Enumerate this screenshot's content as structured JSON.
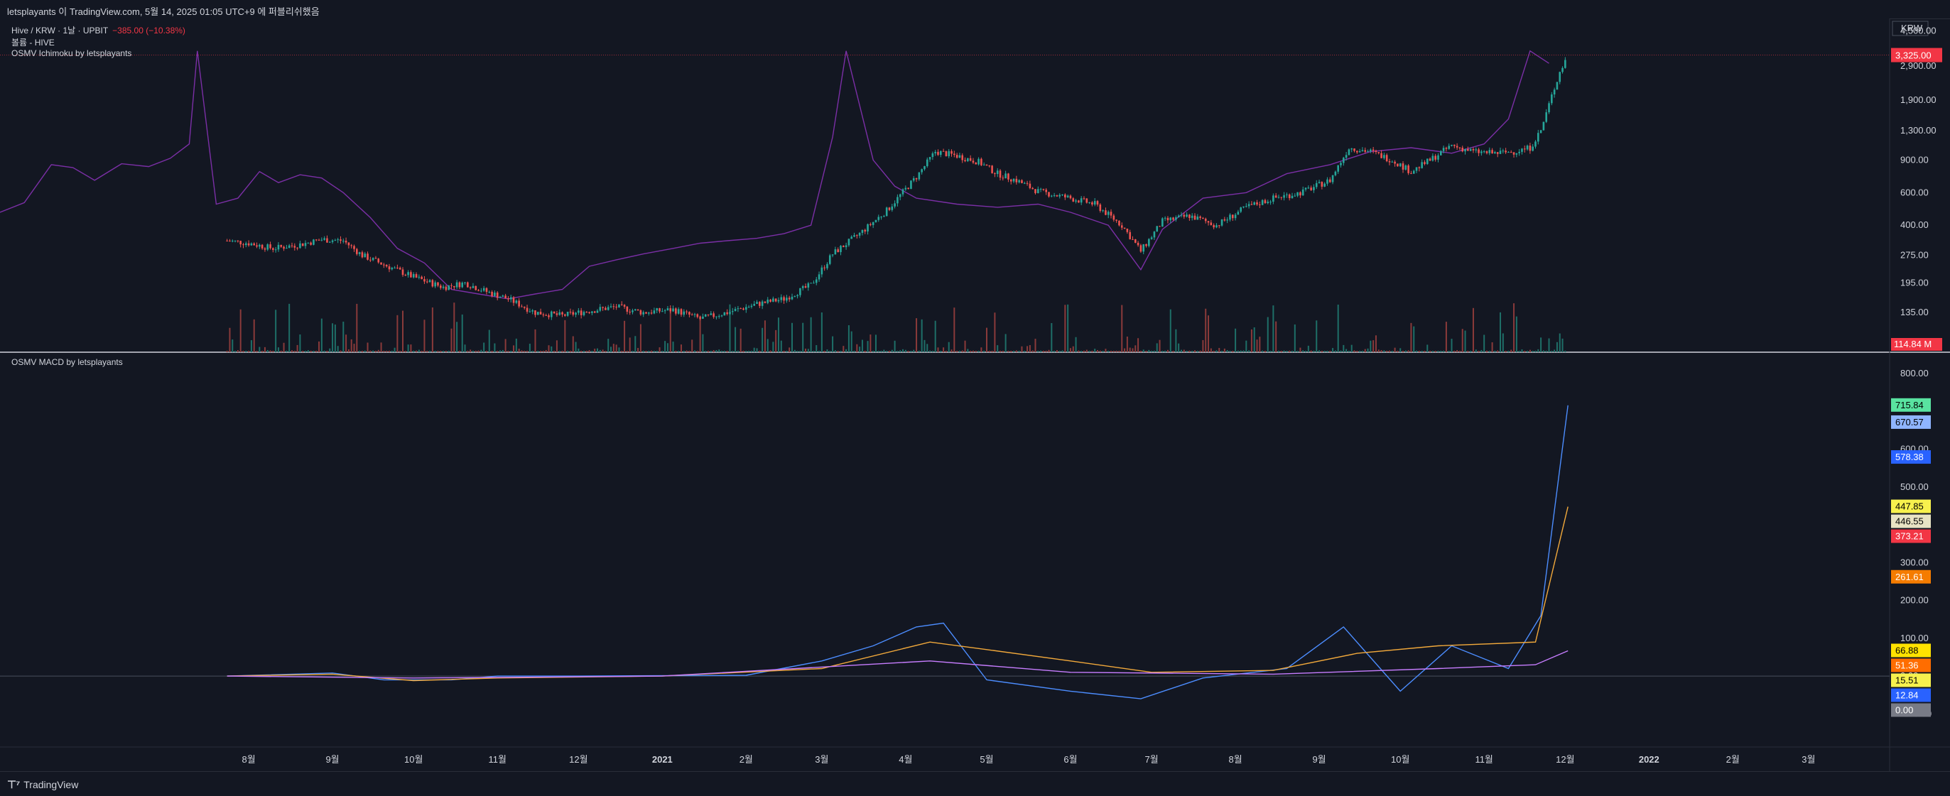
{
  "header": {
    "attribution": "letsplayants 이 TradingView.com, 5월 14, 2025 01:05 UTC+9 에 퍼블리쉬했음"
  },
  "legend": {
    "symbol": "Hive / KRW · 1날 · UPBIT",
    "change": "−385.00 (−10.38%)",
    "volume": "볼륨 - HIVE",
    "ichimoku": "OSMV Ichimoku by letsplayants",
    "macd": "OSMV MACD by letsplayants"
  },
  "currency": "KRW",
  "colors": {
    "background": "#131722",
    "up": "#26a69a",
    "down": "#ef5350",
    "ichimoku": "#7b2fa6",
    "grid": "#1f2330"
  },
  "footer": {
    "brand": "TradingView",
    "logo_icon": "tradingview-logo-icon"
  },
  "chart_data": [
    {
      "type": "candlestick",
      "title": "Hive / KRW · 1날 · UPBIT",
      "scale": "log",
      "ylim": [
        90,
        4800
      ],
      "y_ticks": [
        "4,500.00",
        "2,900.00",
        "1,900.00",
        "1,300.00",
        "900.00",
        "600.00",
        "400.00",
        "275.00",
        "195.00",
        "135.00"
      ],
      "x_ticks": [
        "8월",
        "9월",
        "10월",
        "11월",
        "12월",
        "2021",
        "2월",
        "3월",
        "4월",
        "5월",
        "6월",
        "7월",
        "8월",
        "9월",
        "10월",
        "11월",
        "12월",
        "2022",
        "2월",
        "3월"
      ],
      "last_price": "3,325.00",
      "volume_label": "114.84 M",
      "price_series": [
        [
          "2020-07-24",
          330
        ],
        [
          "2020-08-01",
          320
        ],
        [
          "2020-08-10",
          300
        ],
        [
          "2020-08-20",
          315
        ],
        [
          "2020-08-28",
          335
        ],
        [
          "2020-09-05",
          330
        ],
        [
          "2020-09-12",
          275
        ],
        [
          "2020-09-20",
          245
        ],
        [
          "2020-10-01",
          210
        ],
        [
          "2020-10-12",
          185
        ],
        [
          "2020-10-20",
          195
        ],
        [
          "2020-10-28",
          175
        ],
        [
          "2020-11-05",
          160
        ],
        [
          "2020-11-15",
          135
        ],
        [
          "2020-11-25",
          130
        ],
        [
          "2020-12-05",
          138
        ],
        [
          "2020-12-15",
          145
        ],
        [
          "2020-12-25",
          135
        ],
        [
          "2021-01-05",
          140
        ],
        [
          "2021-01-15",
          125
        ],
        [
          "2021-01-25",
          135
        ],
        [
          "2021-02-05",
          150
        ],
        [
          "2021-02-15",
          160
        ],
        [
          "2021-02-25",
          190
        ],
        [
          "2021-03-05",
          280
        ],
        [
          "2021-03-15",
          360
        ],
        [
          "2021-03-25",
          480
        ],
        [
          "2021-04-05",
          730
        ],
        [
          "2021-04-12",
          1000
        ],
        [
          "2021-04-20",
          950
        ],
        [
          "2021-04-28",
          880
        ],
        [
          "2021-05-05",
          760
        ],
        [
          "2021-05-12",
          700
        ],
        [
          "2021-05-20",
          610
        ],
        [
          "2021-06-01",
          560
        ],
        [
          "2021-06-10",
          520
        ],
        [
          "2021-06-20",
          400
        ],
        [
          "2021-06-27",
          290
        ],
        [
          "2021-07-05",
          420
        ],
        [
          "2021-07-15",
          450
        ],
        [
          "2021-07-25",
          400
        ],
        [
          "2021-08-05",
          500
        ],
        [
          "2021-08-15",
          560
        ],
        [
          "2021-08-25",
          600
        ],
        [
          "2021-09-05",
          700
        ],
        [
          "2021-09-12",
          1050
        ],
        [
          "2021-09-20",
          1000
        ],
        [
          "2021-09-28",
          900
        ],
        [
          "2021-10-05",
          780
        ],
        [
          "2021-10-12",
          900
        ],
        [
          "2021-10-20",
          1080
        ],
        [
          "2021-10-28",
          1000
        ],
        [
          "2021-11-05",
          980
        ],
        [
          "2021-11-12",
          1000
        ],
        [
          "2021-11-18",
          1050
        ],
        [
          "2021-11-22",
          1300
        ],
        [
          "2021-11-26",
          2000
        ],
        [
          "2021-11-29",
          2700
        ],
        [
          "2021-12-02",
          3325
        ]
      ],
      "ichimoku_series": [
        [
          "2020-05-01",
          470
        ],
        [
          "2020-05-10",
          530
        ],
        [
          "2020-05-20",
          850
        ],
        [
          "2020-05-28",
          820
        ],
        [
          "2020-06-05",
          700
        ],
        [
          "2020-06-15",
          860
        ],
        [
          "2020-06-25",
          830
        ],
        [
          "2020-07-03",
          920
        ],
        [
          "2020-07-10",
          1100
        ],
        [
          "2020-07-13",
          3500
        ],
        [
          "2020-07-20",
          520
        ],
        [
          "2020-07-28",
          560
        ],
        [
          "2020-08-05",
          780
        ],
        [
          "2020-08-12",
          680
        ],
        [
          "2020-08-20",
          750
        ],
        [
          "2020-08-28",
          720
        ],
        [
          "2020-09-05",
          600
        ],
        [
          "2020-09-15",
          440
        ],
        [
          "2020-09-25",
          300
        ],
        [
          "2020-10-05",
          250
        ],
        [
          "2020-10-15",
          180
        ],
        [
          "2020-10-25",
          170
        ],
        [
          "2020-11-05",
          160
        ],
        [
          "2020-11-15",
          170
        ],
        [
          "2020-11-25",
          180
        ],
        [
          "2020-12-05",
          240
        ],
        [
          "2020-12-15",
          260
        ],
        [
          "2020-12-25",
          280
        ],
        [
          "2021-01-05",
          300
        ],
        [
          "2021-01-15",
          320
        ],
        [
          "2021-01-25",
          330
        ],
        [
          "2021-02-05",
          340
        ],
        [
          "2021-02-15",
          360
        ],
        [
          "2021-02-25",
          400
        ],
        [
          "2021-03-05",
          1200
        ],
        [
          "2021-03-10",
          3500
        ],
        [
          "2021-03-20",
          900
        ],
        [
          "2021-03-28",
          650
        ],
        [
          "2021-04-05",
          560
        ],
        [
          "2021-04-20",
          520
        ],
        [
          "2021-05-05",
          500
        ],
        [
          "2021-05-20",
          520
        ],
        [
          "2021-06-01",
          470
        ],
        [
          "2021-06-15",
          400
        ],
        [
          "2021-06-27",
          230
        ],
        [
          "2021-07-05",
          380
        ],
        [
          "2021-07-20",
          560
        ],
        [
          "2021-08-05",
          600
        ],
        [
          "2021-08-20",
          760
        ],
        [
          "2021-09-05",
          850
        ],
        [
          "2021-09-20",
          1000
        ],
        [
          "2021-10-05",
          1050
        ],
        [
          "2021-10-20",
          980
        ],
        [
          "2021-11-01",
          1100
        ],
        [
          "2021-11-10",
          1500
        ],
        [
          "2021-11-18",
          3500
        ],
        [
          "2021-11-25",
          3000
        ]
      ]
    },
    {
      "type": "line",
      "title": "OSMV MACD by letsplayants",
      "ylim": [
        -150,
        800
      ],
      "y_ticks": [
        "800.00",
        "600.00",
        "500.00",
        "400.00",
        "300.00",
        "200.00",
        "100.00",
        "0.00",
        "-100.00"
      ],
      "value_tags": [
        "715.84",
        "670.57",
        "578.38",
        "447.85",
        "446.55",
        "373.21",
        "261.61",
        "66.88",
        "51.36",
        "15.51",
        "12.84",
        "0.00"
      ],
      "series": [
        {
          "values": [
            [
              "2020-07-24",
              0
            ],
            [
              "2020-09-01",
              8
            ],
            [
              "2020-09-20",
              -10
            ],
            [
              "2020-10-15",
              -10
            ],
            [
              "2020-11-01",
              0
            ],
            [
              "2020-12-01",
              0
            ],
            [
              "2021-02-01",
              2
            ],
            [
              "2021-03-01",
              40
            ],
            [
              "2021-03-20",
              80
            ],
            [
              "2021-04-05",
              130
            ],
            [
              "2021-04-15",
              140
            ],
            [
              "2021-05-01",
              -10
            ],
            [
              "2021-06-01",
              -40
            ],
            [
              "2021-06-27",
              -60
            ],
            [
              "2021-07-20",
              -5
            ],
            [
              "2021-08-20",
              20
            ],
            [
              "2021-09-10",
              130
            ],
            [
              "2021-10-01",
              -40
            ],
            [
              "2021-10-20",
              80
            ],
            [
              "2021-11-10",
              20
            ],
            [
              "2021-11-22",
              160
            ],
            [
              "2021-12-02",
              715.84
            ]
          ]
        },
        {
          "values": [
            [
              "2020-07-24",
              0
            ],
            [
              "2020-09-01",
              5
            ],
            [
              "2020-10-01",
              -12
            ],
            [
              "2020-11-01",
              -5
            ],
            [
              "2021-01-01",
              0
            ],
            [
              "2021-03-01",
              20
            ],
            [
              "2021-04-10",
              90
            ],
            [
              "2021-05-01",
              70
            ],
            [
              "2021-06-01",
              40
            ],
            [
              "2021-07-01",
              10
            ],
            [
              "2021-08-15",
              15
            ],
            [
              "2021-09-15",
              60
            ],
            [
              "2021-10-15",
              80
            ],
            [
              "2021-11-20",
              90
            ],
            [
              "2021-12-02",
              447.85
            ]
          ]
        },
        {
          "values": [
            [
              "2020-07-24",
              0
            ],
            [
              "2020-10-01",
              -5
            ],
            [
              "2021-01-01",
              0
            ],
            [
              "2021-04-10",
              40
            ],
            [
              "2021-06-01",
              10
            ],
            [
              "2021-08-15",
              5
            ],
            [
              "2021-10-15",
              20
            ],
            [
              "2021-11-20",
              30
            ],
            [
              "2021-12-02",
              66.88
            ]
          ]
        }
      ]
    }
  ]
}
